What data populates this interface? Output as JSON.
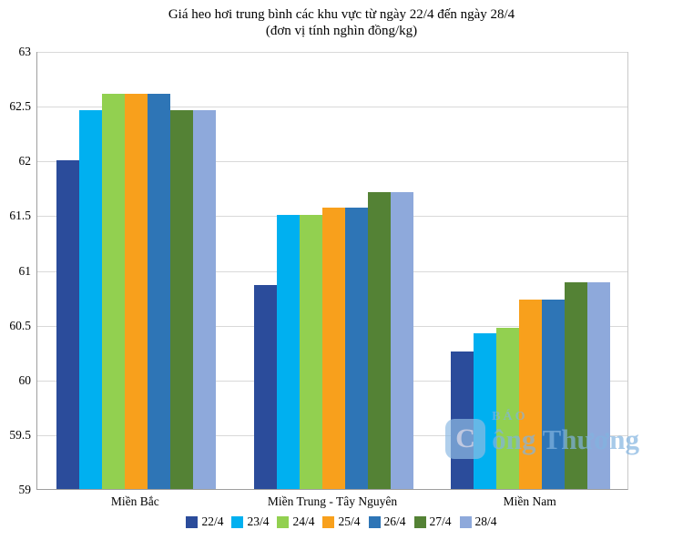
{
  "chart_data": {
    "type": "bar",
    "title": "Giá heo hơi trung bình các khu vực từ ngày 22/4 đến ngày 28/4",
    "subtitle": "(đơn vị tính nghìn đồng/kg)",
    "categories": [
      "Miền Bắc",
      "Miền Trung - Tây Nguyên",
      "Miền Nam"
    ],
    "series": [
      {
        "name": "22/4",
        "color": "#2b4c9b",
        "values": [
          62.0,
          60.86,
          60.26
        ]
      },
      {
        "name": "23/4",
        "color": "#00b0f0",
        "values": [
          62.46,
          61.5,
          60.42
        ]
      },
      {
        "name": "24/4",
        "color": "#92d050",
        "values": [
          62.61,
          61.5,
          60.47
        ]
      },
      {
        "name": "25/4",
        "color": "#f8a01c",
        "values": [
          62.61,
          61.57,
          60.73
        ]
      },
      {
        "name": "26/4",
        "color": "#2e75b6",
        "values": [
          62.61,
          61.57,
          60.73
        ]
      },
      {
        "name": "27/4",
        "color": "#548235",
        "values": [
          62.46,
          61.71,
          60.89
        ]
      },
      {
        "name": "28/4",
        "color": "#8ea9db",
        "values": [
          62.46,
          61.71,
          60.89
        ]
      }
    ],
    "ylim": [
      59,
      63
    ],
    "yticks": [
      "59",
      "59.5",
      "60",
      "60.5",
      "61",
      "61.5",
      "62",
      "62.5",
      "63"
    ],
    "grid": true,
    "legend_position": "bottom",
    "xlabel": "",
    "ylabel": ""
  },
  "watermark": {
    "logo_text": "C",
    "small_text": "BÁO",
    "big_text": "ông Thương"
  }
}
